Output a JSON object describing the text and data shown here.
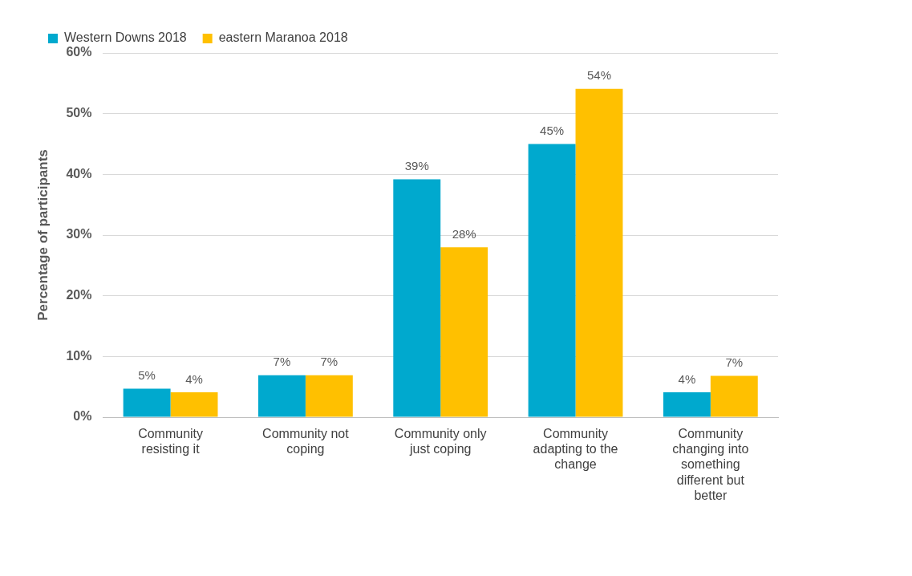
{
  "chart_data": {
    "type": "bar",
    "ylabel": "Percentage of participants",
    "categories": [
      "Community resisting it",
      "Community not coping",
      "Community only just coping",
      "Community adapting to the change",
      "Community changing into something different but better"
    ],
    "series": [
      {
        "name": "Western Downs 2018",
        "color": "#00a9ce",
        "values": [
          4.7,
          6.9,
          39.2,
          45,
          4.1
        ],
        "value_labels": [
          "5%",
          "7%",
          "39%",
          "45%",
          "4%"
        ]
      },
      {
        "name": "eastern Maranoa 2018",
        "color": "#ffc000",
        "values": [
          4.1,
          6.9,
          28,
          54.1,
          6.8
        ],
        "value_labels": [
          "4%",
          "7%",
          "28%",
          "54%",
          "7%"
        ]
      }
    ],
    "ylim": [
      0,
      60
    ],
    "yticks": [
      {
        "value": 0,
        "label": "0%"
      },
      {
        "value": 10,
        "label": "10%"
      },
      {
        "value": 20,
        "label": "20%"
      },
      {
        "value": 30,
        "label": "30%"
      },
      {
        "value": 40,
        "label": "40%"
      },
      {
        "value": 50,
        "label": "50%"
      },
      {
        "value": 60,
        "label": "60%"
      }
    ],
    "grid": "y",
    "legend": "top left"
  }
}
